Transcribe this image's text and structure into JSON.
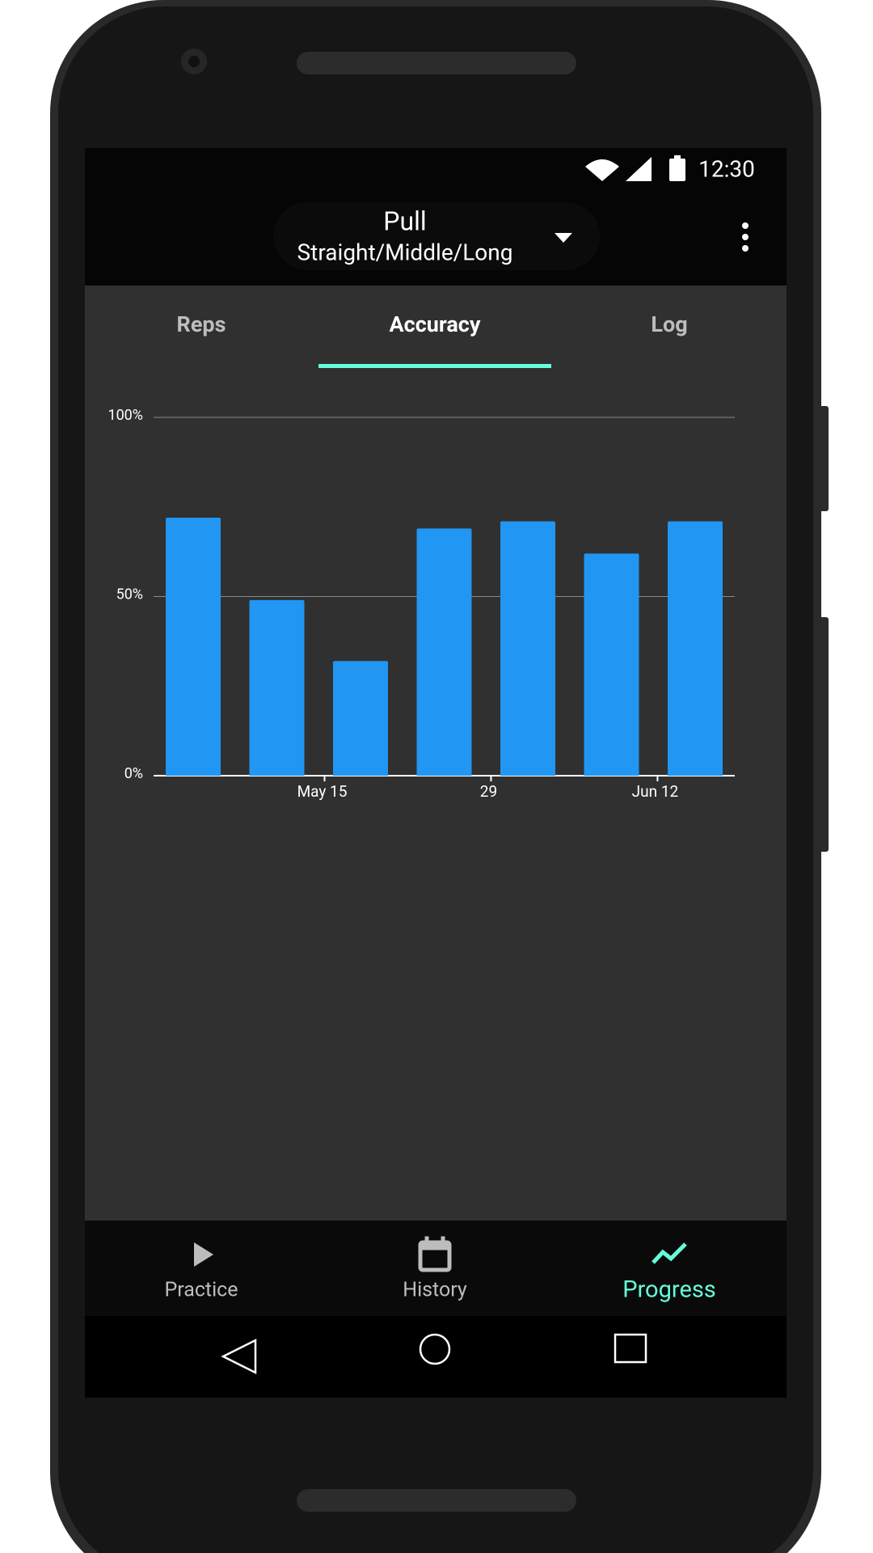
{
  "status_bar": {
    "time": "12:30"
  },
  "app_bar": {
    "title": "Pull",
    "subtitle": "Straight/Middle/Long"
  },
  "tabs": {
    "items": [
      "Reps",
      "Accuracy",
      "Log"
    ],
    "active": 1
  },
  "chart_data": {
    "type": "bar",
    "categories": [
      null,
      null,
      null,
      null,
      null,
      null,
      null
    ],
    "values": [
      72,
      49,
      32,
      69,
      71,
      62,
      71
    ],
    "color": "#2196f3",
    "ylim": [
      0,
      100
    ],
    "yticks": [
      {
        "value": 0,
        "label": "0%"
      },
      {
        "value": 50,
        "label": "50%"
      },
      {
        "value": 100,
        "label": "100%"
      }
    ],
    "xticks": [
      {
        "value": 1.57,
        "label": "May 15"
      },
      {
        "value": 3.56,
        "label": "29"
      },
      {
        "value": 5.55,
        "label": "Jun 12"
      }
    ],
    "grid": true
  },
  "bottom_nav": {
    "items": [
      "Practice",
      "History",
      "Progress"
    ],
    "active": 2
  }
}
